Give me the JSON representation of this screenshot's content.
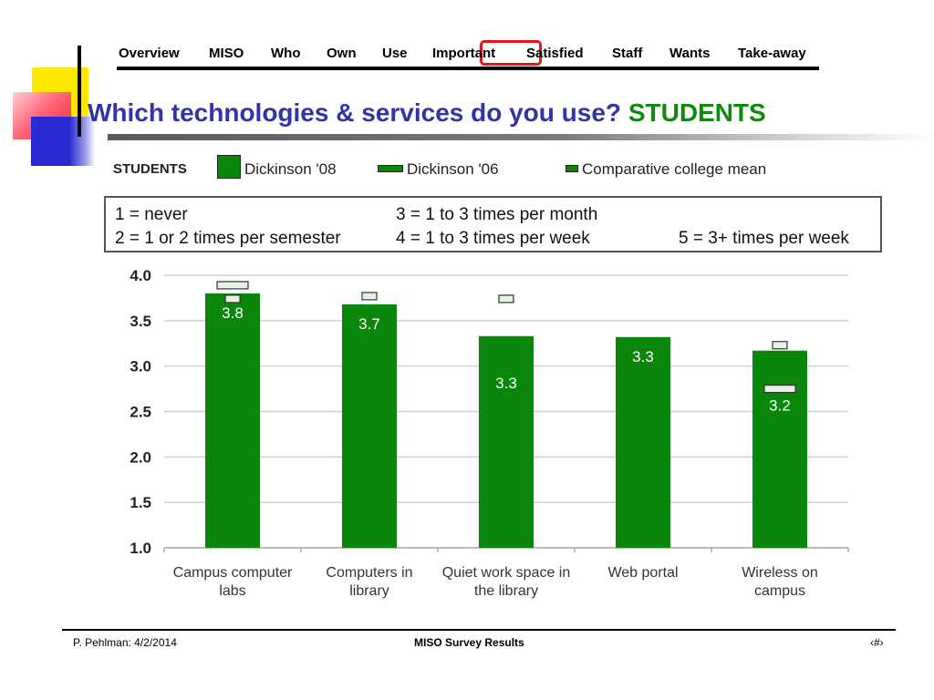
{
  "nav": {
    "items": [
      "Overview",
      "MISO",
      "Who",
      "Own",
      "Use",
      "Important",
      "Satisfied",
      "Staff",
      "Wants",
      "Take-away"
    ],
    "active": "Use"
  },
  "title": {
    "main": "Which technologies & services do you use?",
    "tag": "STUDENTS"
  },
  "legend": {
    "heading": "STUDENTS",
    "entries": [
      "Dickinson '08",
      "Dickinson '06",
      "Comparative college mean"
    ]
  },
  "scale": {
    "s1": "1 = never",
    "s2": "2 = 1 or 2 times per semester",
    "s3": "3 = 1 to 3 times per month",
    "s4": "4 = 1 to 3 times per week",
    "s5": "5 = 3+ times per week"
  },
  "chart_data": {
    "type": "bar",
    "categories": [
      [
        "Campus computer",
        "labs"
      ],
      [
        "Computers in",
        "library"
      ],
      [
        "Quiet work space in",
        "the library"
      ],
      [
        "Web portal"
      ],
      [
        "Wireless on",
        "campus"
      ]
    ],
    "series": [
      {
        "name": "Dickinson '08",
        "values": [
          3.8,
          3.68,
          3.33,
          3.32,
          3.17
        ],
        "labels": [
          "3.8",
          "3.7",
          "3.3",
          "3.3",
          "3.2"
        ]
      },
      {
        "name": "Dickinson '06",
        "values": [
          3.89,
          null,
          null,
          null,
          2.75
        ]
      },
      {
        "name": "Comparative college mean",
        "values": [
          3.74,
          3.77,
          3.74,
          null,
          3.23
        ]
      }
    ],
    "ylim": [
      1.0,
      4.0
    ],
    "yticks": [
      "1.0",
      "1.5",
      "2.0",
      "2.5",
      "3.0",
      "3.5",
      "4.0"
    ],
    "grid": true,
    "colors": {
      "bar": "#0a870a",
      "mean": "#e4f3e2",
      "outline": "#333333",
      "grid": "#d0d0d0"
    }
  },
  "footer": {
    "left": "P. Pehlman: 4/2/2014",
    "center": "MISO Survey Results",
    "right": "‹#›"
  }
}
